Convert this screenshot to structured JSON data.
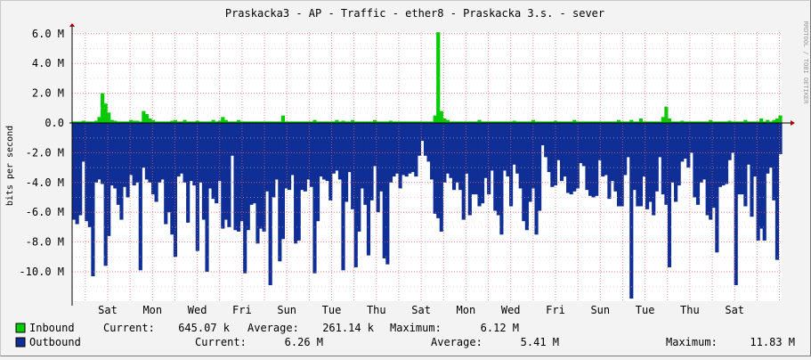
{
  "chart_data": {
    "type": "area",
    "title": "Praskacka3 - AP - Traffic - ether8 - Praskacka 3.s. - sever",
    "ylabel": "bits per second",
    "watermark": "RRDTOOL / TOBI OETIKER",
    "ylim": [
      -11.83,
      6.4
    ],
    "y_ticks": [
      {
        "value": 6,
        "label": "6.0 M"
      },
      {
        "value": 4,
        "label": "4.0 M"
      },
      {
        "value": 2,
        "label": "2.0 M"
      },
      {
        "value": 0,
        "label": "0.0"
      },
      {
        "value": -2,
        "label": "-2.0 M"
      },
      {
        "value": -4,
        "label": "-4.0 M"
      },
      {
        "value": -6,
        "label": "-6.0 M"
      },
      {
        "value": -8,
        "label": "-8.0 M"
      },
      {
        "value": -10,
        "label": "-10.0 M"
      }
    ],
    "x_ticks": [
      "Sat",
      "Mon",
      "Wed",
      "Fri",
      "Sun",
      "Tue",
      "Thu",
      "Sat",
      "Mon",
      "Wed",
      "Fri",
      "Sun",
      "Tue",
      "Thu",
      "Sat"
    ],
    "grid": true,
    "inbound_color": "#00cc00",
    "outbound_color": "#0f2f96",
    "series": [
      {
        "name": "Inbound",
        "color": "#00cc00",
        "values": [
          0.1,
          0.1,
          0.1,
          0.15,
          0.1,
          0.1,
          0.1,
          0.15,
          0.4,
          2.0,
          1.3,
          0.7,
          0.2,
          0.15,
          0.1,
          0.1,
          0.1,
          0.1,
          0.2,
          0.15,
          0.15,
          0.1,
          0.8,
          0.6,
          0.3,
          0.2,
          0.1,
          0.1,
          0.1,
          0.1,
          0.1,
          0.15,
          0.2,
          0.1,
          0.1,
          0.2,
          0.1,
          0.1,
          0.1,
          0.15,
          0.1,
          0.1,
          0.1,
          0.1,
          0.2,
          0.1,
          0.15,
          0.4,
          0.2,
          0.1,
          0.1,
          0.1,
          0.2,
          0.1,
          0.1,
          0.1,
          0.1,
          0.1,
          0.1,
          0.1,
          0.1,
          0.1,
          0.1,
          0.1,
          0.1,
          0.1,
          0.5,
          0.1,
          0.1,
          0.1,
          0.1,
          0.1,
          0.1,
          0.1,
          0.1,
          0.1,
          0.2,
          0.1,
          0.1,
          0.1,
          0.1,
          0.1,
          0.1,
          0.2,
          0.1,
          0.15,
          0.1,
          0.1,
          0.2,
          0.1,
          0.1,
          0.1,
          0.1,
          0.1,
          0.1,
          0.2,
          0.1,
          0.1,
          0.1,
          0.1,
          0.15,
          0.1,
          0.1,
          0.1,
          0.1,
          0.1,
          0.1,
          0.1,
          0.1,
          0.1,
          0.1,
          0.1,
          0.1,
          0.1,
          0.5,
          6.1,
          0.8,
          0.3,
          0.2,
          0.1,
          0.1,
          0.1,
          0.1,
          0.1,
          0.1,
          0.1,
          0.1,
          0.1,
          0.2,
          0.1,
          0.1,
          0.1,
          0.1,
          0.1,
          0.1,
          0.1,
          0.1,
          0.1,
          0.1,
          0.15,
          0.1,
          0.1,
          0.1,
          0.1,
          0.1,
          0.2,
          0.1,
          0.1,
          0.1,
          0.1,
          0.1,
          0.1,
          0.15,
          0.1,
          0.1,
          0.1,
          0.1,
          0.1,
          0.2,
          0.1,
          0.1,
          0.1,
          0.1,
          0.1,
          0.1,
          0.1,
          0.1,
          0.1,
          0.1,
          0.1,
          0.1,
          0.1,
          0.2,
          0.1,
          0.1,
          0.1,
          0.2,
          0.1,
          0.1,
          0.3,
          0.1,
          0.1,
          0.1,
          0.1,
          0.1,
          0.1,
          0.4,
          1.1,
          0.3,
          0.1,
          0.1,
          0.1,
          0.15,
          0.1,
          0.1,
          0.1,
          0.1,
          0.1,
          0.1,
          0.1,
          0.1,
          0.2,
          0.1,
          0.1,
          0.1,
          0.1,
          0.1,
          0.15,
          0.1,
          0.1,
          0.1,
          0.1,
          0.2,
          0.1,
          0.1,
          0.1,
          0.1,
          0.3,
          0.1,
          0.2,
          0.1,
          0.2,
          0.3,
          0.5
        ]
      },
      {
        "name": "Outbound",
        "color": "#0f2f96",
        "values": [
          -6.5,
          -6.8,
          -6.2,
          -2.6,
          -6.6,
          -7.0,
          -10.3,
          -4.0,
          -3.8,
          -4.1,
          -9.6,
          -7.6,
          -4.2,
          -4.4,
          -5.5,
          -6.5,
          -4.3,
          -5.0,
          -3.5,
          -4.2,
          -4.0,
          -9.9,
          -3.0,
          -3.8,
          -4.0,
          -4.8,
          -5.3,
          -4.0,
          -3.8,
          -6.8,
          -6.0,
          -7.5,
          -9.0,
          -3.6,
          -3.4,
          -4.0,
          -6.7,
          -3.9,
          -4.2,
          -8.6,
          -4.0,
          -6.5,
          -10.0,
          -4.4,
          -5.1,
          -5.4,
          -3.9,
          -7.1,
          -6.5,
          -7.0,
          -2.2,
          -7.2,
          -7.3,
          -6.6,
          -10.1,
          -7.2,
          -5.5,
          -5.4,
          -8.1,
          -7.1,
          -7.3,
          -4.6,
          -10.9,
          -5.0,
          -3.8,
          -9.3,
          -7.8,
          -4.4,
          -4.5,
          -3.5,
          -8.1,
          -7.9,
          -4.5,
          -4.6,
          -3.8,
          -4.3,
          -10.1,
          -6.6,
          -3.6,
          -3.8,
          -3.9,
          -5.2,
          -3.4,
          -3.2,
          -3.8,
          -9.9,
          -5.3,
          -3.3,
          -5.8,
          -9.7,
          -7.3,
          -4.4,
          -5.5,
          -8.9,
          -5.2,
          -2.9,
          -6.0,
          -4.6,
          -9.1,
          -9.5,
          -4.0,
          -3.6,
          -3.4,
          -4.4,
          -3.5,
          -3.6,
          -3.4,
          -3.3,
          -3.6,
          -2.2,
          -1.2,
          -2.2,
          -2.6,
          -3.8,
          -6.1,
          -6.4,
          -7.3,
          -4.0,
          -3.4,
          -3.7,
          -4.5,
          -4.0,
          -4.5,
          -6.5,
          -3.4,
          -6.2,
          -4.8,
          -4.8,
          -5.6,
          -5.4,
          -3.7,
          -4.8,
          -3.2,
          -5.9,
          -6.2,
          -7.5,
          -3.2,
          -3.6,
          -5.6,
          -2.8,
          -3.4,
          -4.4,
          -6.6,
          -7.2,
          -5.3,
          -4.4,
          -7.5,
          -5.9,
          -1.5,
          -2.3,
          -3.3,
          -4.3,
          -4.2,
          -2.5,
          -3.9,
          -3.6,
          -4.7,
          -4.8,
          -4.6,
          -4.4,
          -2.7,
          -2.9,
          -4.5,
          -4.9,
          -5.0,
          -4.9,
          -2.5,
          -3.6,
          -3.5,
          -5.1,
          -3.9,
          -4.6,
          -5.6,
          -5.6,
          -3.5,
          -2.3,
          -11.8,
          -4.5,
          -5.6,
          -5.6,
          -3.6,
          -5.8,
          -5.3,
          -6.2,
          -4.6,
          -2.3,
          -4.8,
          -5.5,
          -9.7,
          -4.0,
          -5.3,
          -4.2,
          -2.6,
          -2.4,
          -3.0,
          -2.0,
          -5.0,
          -5.5,
          -4.0,
          -3.8,
          -6.2,
          -6.5,
          -5.7,
          -8.7,
          -4.3,
          -4.2,
          -4.1,
          -2.5,
          -2.0,
          -10.9,
          -4.8,
          -4.8,
          -5.6,
          -2.8,
          -6.3,
          -3.6,
          -7.9,
          -7.1,
          -7.9,
          -3.4,
          -3.0,
          -5.2,
          -9.2,
          -2.1,
          -3.4,
          -5.0,
          -3.6,
          -10.7,
          -6.3
        ]
      }
    ]
  },
  "legend": {
    "inbound": {
      "name": "Inbound",
      "current_label": "Current:",
      "current": "645.07 k",
      "average_label": "Average:",
      "average": "261.14 k",
      "maximum_label": "Maximum:",
      "maximum": "6.12 M"
    },
    "outbound": {
      "name": "Outbound",
      "current_label": "Current:",
      "current": "6.26 M",
      "average_label": "Average:",
      "average": "5.41 M",
      "maximum_label": "Maximum:",
      "maximum": "11.83 M"
    }
  }
}
